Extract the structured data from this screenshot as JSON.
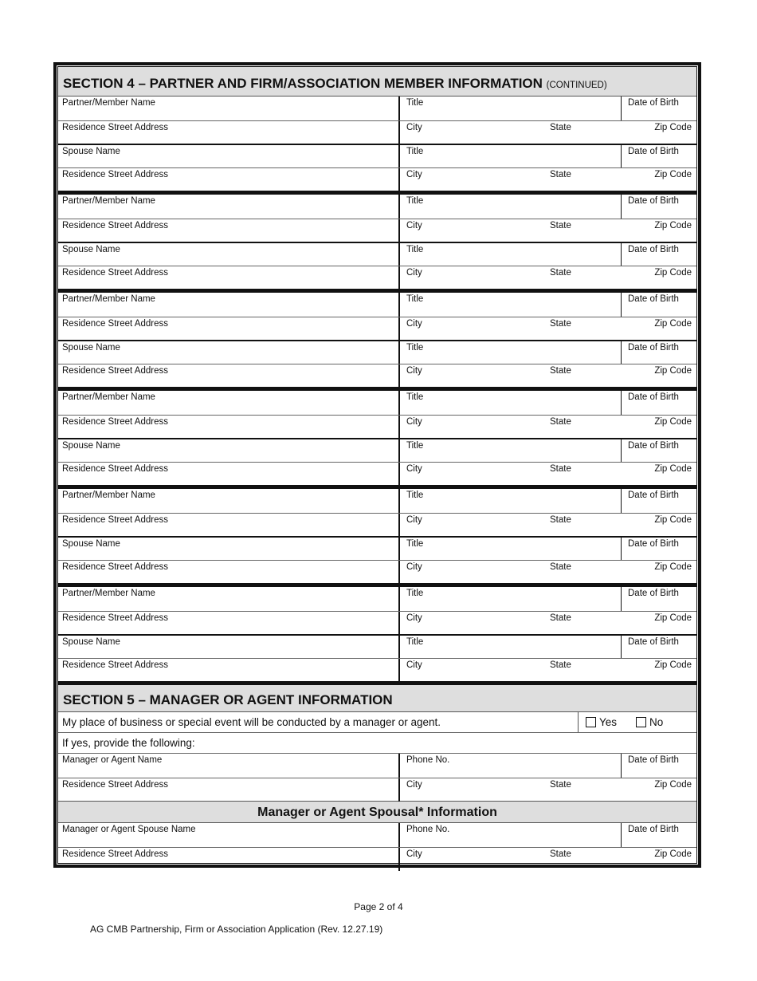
{
  "section4": {
    "title": "SECTION  4 – PARTNER AND FIRM/ASSOCIATION MEMBER INFORMATION",
    "continued": "(CONTINUED)",
    "labels": {
      "partner_name": "Partner/Member Name",
      "spouse_name": "Spouse Name",
      "address": "Residence Street Address",
      "title": "Title",
      "dob": "Date of Birth",
      "city": "City",
      "state": "State",
      "zip": "Zip Code"
    },
    "block_count": 6
  },
  "section5": {
    "title": "SECTION  5 – MANAGER OR AGENT INFORMATION",
    "question": "My place of business or special event will be conducted by a manager or agent.",
    "yes": "Yes",
    "no": "No",
    "if_yes": "If yes, provide the following:",
    "manager_name": "Manager or Agent Name",
    "phone": "Phone No.",
    "dob": "Date of Birth",
    "address": "Residence Street Address",
    "city": "City",
    "state": "State",
    "zip": "Zip Code",
    "spouse_heading": "Manager or Agent Spousal* Information",
    "spouse_name": "Manager or Agent Spouse Name"
  },
  "footer": {
    "page": "Page 2 of 4",
    "form_id": "AG CMB Partnership, Firm or Association Application (Rev. 12.27.19)"
  }
}
